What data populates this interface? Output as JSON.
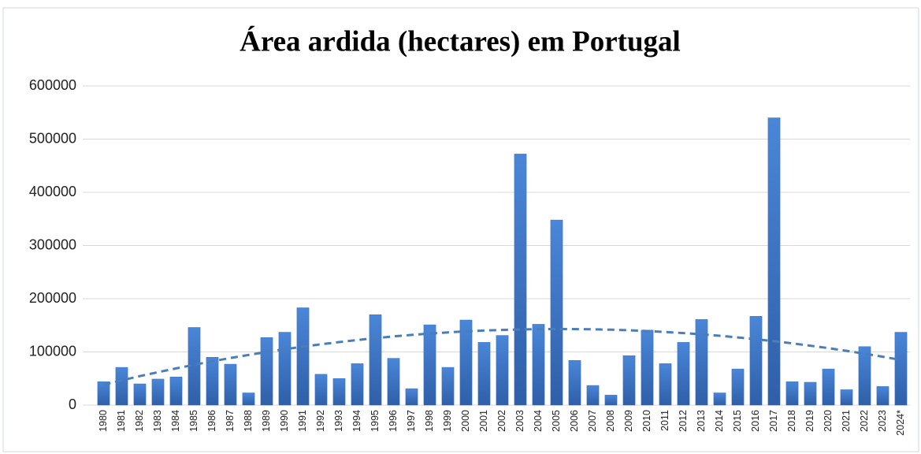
{
  "chart_data": {
    "type": "bar",
    "title": "Área ardida (hectares) em Portugal",
    "categories": [
      "1980",
      "1981",
      "1982",
      "1983",
      "1984",
      "1985",
      "1986",
      "1987",
      "1988",
      "1989",
      "1990",
      "1991",
      "1992",
      "1993",
      "1994",
      "1995",
      "1996",
      "1997",
      "1998",
      "1999",
      "2000",
      "2001",
      "2002",
      "2003",
      "2004",
      "2005",
      "2006",
      "2007",
      "2008",
      "2009",
      "2010",
      "2011",
      "2012",
      "2013",
      "2014",
      "2015",
      "2016",
      "2017",
      "2018",
      "2019",
      "2020",
      "2021",
      "2022",
      "2023",
      "2024*"
    ],
    "values": [
      44000,
      71000,
      40000,
      49000,
      53000,
      146000,
      90000,
      77000,
      23000,
      127000,
      137000,
      183000,
      58000,
      50000,
      78000,
      170000,
      88000,
      31000,
      151000,
      71000,
      160000,
      118000,
      131000,
      472000,
      152000,
      348000,
      84000,
      37000,
      19000,
      93000,
      141000,
      78000,
      118000,
      161000,
      23000,
      68000,
      167000,
      540000,
      44000,
      43000,
      68000,
      29000,
      110000,
      35000,
      137000
    ],
    "color": "#3a72c4",
    "ylim": [
      0,
      600000
    ],
    "yticks": [
      0,
      100000,
      200000,
      300000,
      400000,
      500000,
      600000
    ],
    "grid": true,
    "trend": {
      "order": 2,
      "color": "#4a7ebb"
    }
  }
}
